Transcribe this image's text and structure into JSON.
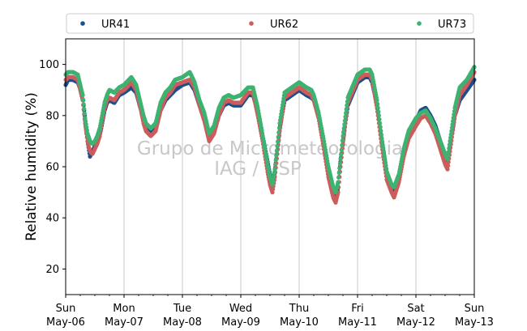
{
  "chart_data": {
    "type": "scatter",
    "ylabel": "Relative humidity (%)",
    "ylim": [
      10,
      110
    ],
    "yticks": [
      20,
      40,
      60,
      80,
      100
    ],
    "xlim": [
      "2024-05-06",
      "2024-05-13"
    ],
    "xticks": [
      {
        "day": "Sun",
        "date": "May-06"
      },
      {
        "day": "Mon",
        "date": "May-07"
      },
      {
        "day": "Tue",
        "date": "May-08"
      },
      {
        "day": "Wed",
        "date": "May-09"
      },
      {
        "day": "Thu",
        "date": "May-10"
      },
      {
        "day": "Fri",
        "date": "May-11"
      },
      {
        "day": "Sat",
        "date": "May-12"
      },
      {
        "day": "Sun",
        "date": "May-13"
      }
    ],
    "grid": "vertical",
    "legend_position": "top",
    "watermark": [
      "Grupo de Micrometeorologia",
      "IAG / USP"
    ],
    "series": [
      {
        "name": "UR41",
        "color": "#1f4e8c",
        "points": [
          [
            "05-06 00:00",
            92
          ],
          [
            "05-06 01:00",
            94
          ],
          [
            "05-06 03:00",
            94
          ],
          [
            "05-06 05:00",
            93
          ],
          [
            "05-06 07:00",
            88
          ],
          [
            "05-06 08:00",
            78
          ],
          [
            "05-06 09:00",
            70
          ],
          [
            "05-06 10:00",
            64
          ],
          [
            "05-06 11:00",
            66
          ],
          [
            "05-06 12:00",
            68
          ],
          [
            "05-06 13:00",
            70
          ],
          [
            "05-06 14:00",
            72
          ],
          [
            "05-06 15:00",
            77
          ],
          [
            "05-06 16:00",
            82
          ],
          [
            "05-06 17:00",
            85
          ],
          [
            "05-06 18:00",
            86
          ],
          [
            "05-06 20:00",
            85
          ],
          [
            "05-06 22:00",
            88
          ],
          [
            "05-07 00:00",
            89
          ],
          [
            "05-07 03:00",
            91
          ],
          [
            "05-07 05:00",
            89
          ],
          [
            "05-07 07:00",
            82
          ],
          [
            "05-07 08:00",
            78
          ],
          [
            "05-07 09:00",
            75
          ],
          [
            "05-07 11:00",
            73
          ],
          [
            "05-07 13:00",
            75
          ],
          [
            "05-07 15:00",
            82
          ],
          [
            "05-07 17:00",
            86
          ],
          [
            "05-07 19:00",
            88
          ],
          [
            "05-07 21:00",
            90
          ],
          [
            "05-08 00:00",
            92
          ],
          [
            "05-08 03:00",
            93
          ],
          [
            "05-08 05:00",
            90
          ],
          [
            "05-08 07:00",
            84
          ],
          [
            "05-08 09:00",
            80
          ],
          [
            "05-08 10:00",
            76
          ],
          [
            "05-08 11:00",
            72
          ],
          [
            "05-08 13:00",
            74
          ],
          [
            "05-08 15:00",
            80
          ],
          [
            "05-08 17:00",
            84
          ],
          [
            "05-08 19:00",
            85
          ],
          [
            "05-08 21:00",
            84
          ],
          [
            "05-09 00:00",
            84
          ],
          [
            "05-09 03:00",
            88
          ],
          [
            "05-09 05:00",
            88
          ],
          [
            "05-09 07:00",
            82
          ],
          [
            "05-09 09:00",
            72
          ],
          [
            "05-09 11:00",
            62
          ],
          [
            "05-09 12:00",
            57
          ],
          [
            "05-09 13:00",
            53
          ],
          [
            "05-09 14:00",
            58
          ],
          [
            "05-09 16:00",
            75
          ],
          [
            "05-09 18:00",
            86
          ],
          [
            "05-09 21:00",
            88
          ],
          [
            "05-10 00:00",
            90
          ],
          [
            "05-10 03:00",
            88
          ],
          [
            "05-10 05:00",
            87
          ],
          [
            "05-10 06:00",
            86
          ],
          [
            "05-10 08:00",
            80
          ],
          [
            "05-10 10:00",
            70
          ],
          [
            "05-10 12:00",
            58
          ],
          [
            "05-10 14:00",
            49
          ],
          [
            "05-10 15:00",
            47
          ],
          [
            "05-10 16:00",
            52
          ],
          [
            "05-10 17:00",
            62
          ],
          [
            "05-10 18:00",
            70
          ],
          [
            "05-10 20:00",
            84
          ],
          [
            "05-11 00:00",
            93
          ],
          [
            "05-11 03:00",
            95
          ],
          [
            "05-11 05:00",
            95
          ],
          [
            "05-11 06:00",
            93
          ],
          [
            "05-11 08:00",
            84
          ],
          [
            "05-11 10:00",
            70
          ],
          [
            "05-11 12:00",
            58
          ],
          [
            "05-11 14:00",
            52
          ],
          [
            "05-11 15:00",
            50
          ],
          [
            "05-11 17:00",
            55
          ],
          [
            "05-11 19:00",
            65
          ],
          [
            "05-11 21:00",
            72
          ],
          [
            "05-12 00:00",
            78
          ],
          [
            "05-12 02:00",
            82
          ],
          [
            "05-12 04:00",
            83
          ],
          [
            "05-12 06:00",
            80
          ],
          [
            "05-12 08:00",
            76
          ],
          [
            "05-12 10:00",
            70
          ],
          [
            "05-12 12:00",
            64
          ],
          [
            "05-12 13:00",
            62
          ],
          [
            "05-12 14:00",
            68
          ],
          [
            "05-12 16:00",
            80
          ],
          [
            "05-12 18:00",
            86
          ],
          [
            "05-12 21:00",
            90
          ],
          [
            "05-13 00:00",
            94
          ]
        ]
      },
      {
        "name": "UR62",
        "color": "#cd5c5c",
        "points": [
          [
            "05-06 00:00",
            94
          ],
          [
            "05-06 01:00",
            95
          ],
          [
            "05-06 03:00",
            95
          ],
          [
            "05-06 05:00",
            94
          ],
          [
            "05-06 07:00",
            86
          ],
          [
            "05-06 08:00",
            77
          ],
          [
            "05-06 09:00",
            70
          ],
          [
            "05-06 10:00",
            66
          ],
          [
            "05-06 11:00",
            65
          ],
          [
            "05-06 12:00",
            67
          ],
          [
            "05-06 13:00",
            69
          ],
          [
            "05-06 14:00",
            72
          ],
          [
            "05-06 15:00",
            78
          ],
          [
            "05-06 16:00",
            83
          ],
          [
            "05-06 17:00",
            86
          ],
          [
            "05-06 18:00",
            87
          ],
          [
            "05-06 20:00",
            86
          ],
          [
            "05-06 22:00",
            89
          ],
          [
            "05-07 00:00",
            90
          ],
          [
            "05-07 03:00",
            93
          ],
          [
            "05-07 05:00",
            90
          ],
          [
            "05-07 07:00",
            82
          ],
          [
            "05-07 08:00",
            77
          ],
          [
            "05-07 09:00",
            74
          ],
          [
            "05-07 11:00",
            72
          ],
          [
            "05-07 13:00",
            74
          ],
          [
            "05-07 15:00",
            82
          ],
          [
            "05-07 17:00",
            87
          ],
          [
            "05-07 19:00",
            89
          ],
          [
            "05-07 21:00",
            92
          ],
          [
            "05-08 00:00",
            93
          ],
          [
            "05-08 03:00",
            94
          ],
          [
            "05-08 05:00",
            91
          ],
          [
            "05-08 07:00",
            84
          ],
          [
            "05-08 09:00",
            78
          ],
          [
            "05-08 10:00",
            74
          ],
          [
            "05-08 11:00",
            70
          ],
          [
            "05-08 13:00",
            73
          ],
          [
            "05-08 15:00",
            80
          ],
          [
            "05-08 17:00",
            85
          ],
          [
            "05-08 19:00",
            86
          ],
          [
            "05-08 21:00",
            85
          ],
          [
            "05-09 00:00",
            85
          ],
          [
            "05-09 03:00",
            89
          ],
          [
            "05-09 05:00",
            89
          ],
          [
            "05-09 07:00",
            80
          ],
          [
            "05-09 09:00",
            70
          ],
          [
            "05-09 11:00",
            58
          ],
          [
            "05-09 12:00",
            53
          ],
          [
            "05-09 13:00",
            50
          ],
          [
            "05-09 14:00",
            56
          ],
          [
            "05-09 16:00",
            74
          ],
          [
            "05-09 18:00",
            87
          ],
          [
            "05-09 21:00",
            89
          ],
          [
            "05-10 00:00",
            91
          ],
          [
            "05-10 03:00",
            89
          ],
          [
            "05-10 05:00",
            88
          ],
          [
            "05-10 06:00",
            86
          ],
          [
            "05-10 08:00",
            79
          ],
          [
            "05-10 10:00",
            68
          ],
          [
            "05-10 12:00",
            56
          ],
          [
            "05-10 14:00",
            48
          ],
          [
            "05-10 15:00",
            46
          ],
          [
            "05-10 16:00",
            50
          ],
          [
            "05-10 17:00",
            60
          ],
          [
            "05-10 18:00",
            69
          ],
          [
            "05-10 20:00",
            85
          ],
          [
            "05-11 00:00",
            94
          ],
          [
            "05-11 03:00",
            96
          ],
          [
            "05-11 05:00",
            96
          ],
          [
            "05-11 06:00",
            94
          ],
          [
            "05-11 08:00",
            83
          ],
          [
            "05-11 10:00",
            68
          ],
          [
            "05-11 12:00",
            55
          ],
          [
            "05-11 14:00",
            50
          ],
          [
            "05-11 15:00",
            48
          ],
          [
            "05-11 17:00",
            54
          ],
          [
            "05-11 19:00",
            64
          ],
          [
            "05-11 21:00",
            71
          ],
          [
            "05-12 00:00",
            76
          ],
          [
            "05-12 02:00",
            79
          ],
          [
            "05-12 04:00",
            80
          ],
          [
            "05-12 06:00",
            77
          ],
          [
            "05-12 08:00",
            73
          ],
          [
            "05-12 10:00",
            67
          ],
          [
            "05-12 12:00",
            61
          ],
          [
            "05-12 13:00",
            59
          ],
          [
            "05-12 14:00",
            66
          ],
          [
            "05-12 16:00",
            80
          ],
          [
            "05-12 18:00",
            88
          ],
          [
            "05-12 21:00",
            92
          ],
          [
            "05-13 00:00",
            97
          ]
        ]
      },
      {
        "name": "UR73",
        "color": "#3cb371",
        "points": [
          [
            "05-06 00:00",
            96
          ],
          [
            "05-06 01:00",
            97
          ],
          [
            "05-06 03:00",
            97
          ],
          [
            "05-06 05:00",
            96
          ],
          [
            "05-06 07:00",
            88
          ],
          [
            "05-06 08:00",
            79
          ],
          [
            "05-06 09:00",
            73
          ],
          [
            "05-06 10:00",
            70
          ],
          [
            "05-06 11:00",
            69
          ],
          [
            "05-06 12:00",
            70
          ],
          [
            "05-06 13:00",
            72
          ],
          [
            "05-06 14:00",
            75
          ],
          [
            "05-06 15:00",
            80
          ],
          [
            "05-06 16:00",
            85
          ],
          [
            "05-06 17:00",
            88
          ],
          [
            "05-06 18:00",
            90
          ],
          [
            "05-06 20:00",
            89
          ],
          [
            "05-06 22:00",
            91
          ],
          [
            "05-07 00:00",
            92
          ],
          [
            "05-07 03:00",
            95
          ],
          [
            "05-07 05:00",
            92
          ],
          [
            "05-07 07:00",
            84
          ],
          [
            "05-07 08:00",
            80
          ],
          [
            "05-07 09:00",
            77
          ],
          [
            "05-07 11:00",
            75
          ],
          [
            "05-07 13:00",
            77
          ],
          [
            "05-07 15:00",
            85
          ],
          [
            "05-07 17:00",
            89
          ],
          [
            "05-07 19:00",
            91
          ],
          [
            "05-07 21:00",
            94
          ],
          [
            "05-08 00:00",
            95
          ],
          [
            "05-08 03:00",
            97
          ],
          [
            "05-08 05:00",
            93
          ],
          [
            "05-08 07:00",
            86
          ],
          [
            "05-08 09:00",
            81
          ],
          [
            "05-08 10:00",
            77
          ],
          [
            "05-08 11:00",
            73
          ],
          [
            "05-08 13:00",
            76
          ],
          [
            "05-08 15:00",
            83
          ],
          [
            "05-08 17:00",
            87
          ],
          [
            "05-08 19:00",
            88
          ],
          [
            "05-08 21:00",
            87
          ],
          [
            "05-09 00:00",
            88
          ],
          [
            "05-09 03:00",
            91
          ],
          [
            "05-09 05:00",
            91
          ],
          [
            "05-09 07:00",
            83
          ],
          [
            "05-09 09:00",
            72
          ],
          [
            "05-09 11:00",
            61
          ],
          [
            "05-09 12:00",
            56
          ],
          [
            "05-09 13:00",
            53
          ],
          [
            "05-09 14:00",
            59
          ],
          [
            "05-09 16:00",
            77
          ],
          [
            "05-09 18:00",
            89
          ],
          [
            "05-09 21:00",
            91
          ],
          [
            "05-10 00:00",
            93
          ],
          [
            "05-10 03:00",
            91
          ],
          [
            "05-10 05:00",
            90
          ],
          [
            "05-10 06:00",
            88
          ],
          [
            "05-10 08:00",
            81
          ],
          [
            "05-10 10:00",
            71
          ],
          [
            "05-10 12:00",
            60
          ],
          [
            "05-10 14:00",
            52
          ],
          [
            "05-10 15:00",
            50
          ],
          [
            "05-10 16:00",
            54
          ],
          [
            "05-10 17:00",
            63
          ],
          [
            "05-10 18:00",
            72
          ],
          [
            "05-10 20:00",
            87
          ],
          [
            "05-11 00:00",
            96
          ],
          [
            "05-11 03:00",
            98
          ],
          [
            "05-11 05:00",
            98
          ],
          [
            "05-11 06:00",
            96
          ],
          [
            "05-11 08:00",
            86
          ],
          [
            "05-11 10:00",
            71
          ],
          [
            "05-11 12:00",
            58
          ],
          [
            "05-11 14:00",
            53
          ],
          [
            "05-11 15:00",
            52
          ],
          [
            "05-11 17:00",
            57
          ],
          [
            "05-11 19:00",
            67
          ],
          [
            "05-11 21:00",
            74
          ],
          [
            "05-12 00:00",
            79
          ],
          [
            "05-12 02:00",
            81
          ],
          [
            "05-12 04:00",
            82
          ],
          [
            "05-12 06:00",
            79
          ],
          [
            "05-12 08:00",
            75
          ],
          [
            "05-12 10:00",
            70
          ],
          [
            "05-12 12:00",
            65
          ],
          [
            "05-12 13:00",
            63
          ],
          [
            "05-12 14:00",
            70
          ],
          [
            "05-12 16:00",
            83
          ],
          [
            "05-12 18:00",
            91
          ],
          [
            "05-12 21:00",
            94
          ],
          [
            "05-13 00:00",
            99
          ]
        ]
      }
    ]
  }
}
